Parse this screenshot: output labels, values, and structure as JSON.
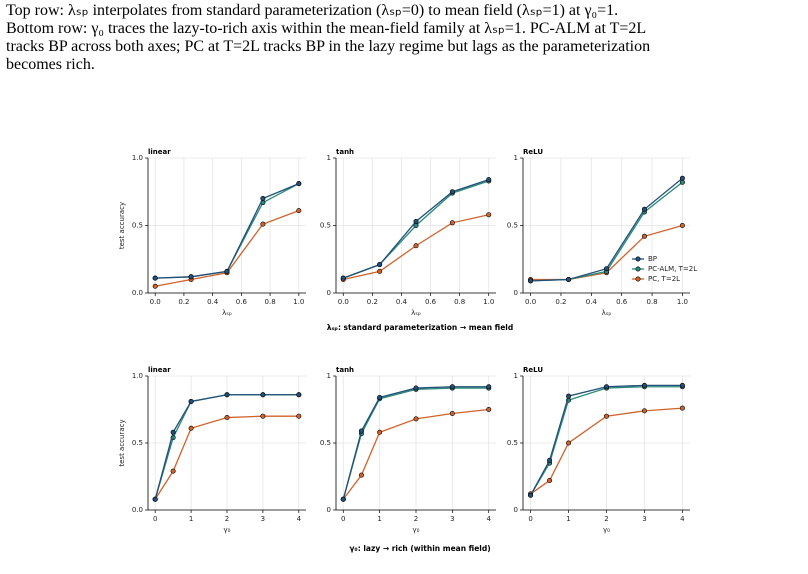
{
  "caption": {
    "lines": [
      "Top row: λₛₚ interpolates from standard parameterization (λₛₚ=0) to mean field (λₛₚ=1) at γ₀=1.",
      "Bottom row: γ₀ traces the lazy-to-rich axis within the mean-field family at λₛₚ=1. PC-ALM at T=2L",
      "tracks BP across both axes; PC at T=2L tracks BP in the lazy regime but lags as the parameterization",
      "becomes rich."
    ]
  },
  "row_labels": [
    "λₛₚ: standard parameterization → mean field",
    "γ₀: lazy → rich (within mean field)"
  ],
  "chart_data": [
    {
      "type": "line",
      "title": "linear",
      "x_label": "λₛₚ",
      "y_label": "test accuracy",
      "x": [
        0,
        0.25,
        0.5,
        0.75,
        1.0
      ],
      "series": [
        {
          "color": "#23507a",
          "values": [
            0.11,
            0.12,
            0.16,
            0.7,
            0.81
          ]
        },
        {
          "color": "#2a8a78",
          "values": [
            0.11,
            0.12,
            0.16,
            0.67,
            0.81
          ]
        },
        {
          "color": "#d0622c",
          "values": [
            0.05,
            0.1,
            0.15,
            0.51,
            0.61
          ]
        }
      ],
      "xlim": [
        -0.05,
        1.05
      ],
      "ylim": [
        0,
        1
      ],
      "xticks": [
        {
          "value": 0,
          "label": "0.0"
        },
        0.2,
        0.4,
        0.6,
        0.8,
        {
          "value": 1,
          "label": "1.0"
        }
      ],
      "yticks": [
        {
          "value": 0,
          "label": "0.0"
        },
        0.5,
        {
          "value": 1,
          "label": "1.0"
        }
      ],
      "grid": true
    },
    {
      "type": "line",
      "title": "tanh",
      "x_label": "λₛₚ",
      "x": [
        0,
        0.25,
        0.5,
        0.75,
        1.0
      ],
      "series": [
        {
          "color": "#23507a",
          "values": [
            0.11,
            0.21,
            0.53,
            0.75,
            0.84
          ]
        },
        {
          "color": "#2a8a78",
          "values": [
            0.11,
            0.21,
            0.5,
            0.74,
            0.83
          ]
        },
        {
          "color": "#d0622c",
          "values": [
            0.1,
            0.16,
            0.35,
            0.52,
            0.58
          ]
        }
      ],
      "xlim": [
        -0.05,
        1.05
      ],
      "ylim": [
        0,
        1
      ],
      "xticks": [
        {
          "value": 0,
          "label": "0.0"
        },
        0.2,
        0.4,
        0.6,
        0.8,
        {
          "value": 1,
          "label": "1.0"
        }
      ],
      "yticks": [
        0,
        0.5,
        1
      ],
      "grid": true
    },
    {
      "type": "line",
      "title": "ReLU",
      "x_label": "λₛₚ",
      "legend": "lower right",
      "x": [
        0,
        0.25,
        0.5,
        0.75,
        1.0
      ],
      "series": [
        {
          "name": "BP",
          "color": "#23507a",
          "values": [
            0.09,
            0.1,
            0.18,
            0.62,
            0.85
          ]
        },
        {
          "name": "PC-ALM, T=2L",
          "color": "#2a8a78",
          "values": [
            0.09,
            0.1,
            0.16,
            0.6,
            0.82
          ]
        },
        {
          "name": "PC, T=2L",
          "color": "#d0622c",
          "values": [
            0.1,
            0.1,
            0.15,
            0.42,
            0.5
          ]
        }
      ],
      "xlim": [
        -0.05,
        1.05
      ],
      "ylim": [
        0,
        1
      ],
      "xticks": [
        {
          "value": 0,
          "label": "0.0"
        },
        0.2,
        0.4,
        0.6,
        0.8,
        {
          "value": 1,
          "label": "1.0"
        }
      ],
      "yticks": [
        0,
        0.5,
        1
      ],
      "grid": true
    },
    {
      "type": "line",
      "title": "linear",
      "x_label": "γ₀",
      "y_label": "test accuracy",
      "x": [
        0,
        0.5,
        1,
        2,
        3,
        4
      ],
      "series": [
        {
          "color": "#23507a",
          "values": [
            0.08,
            0.58,
            0.81,
            0.86,
            0.86,
            0.86
          ]
        },
        {
          "color": "#2a8a78",
          "values": [
            0.08,
            0.54,
            0.81,
            0.86,
            0.86,
            0.86
          ]
        },
        {
          "color": "#d0622c",
          "values": [
            0.08,
            0.29,
            0.61,
            0.69,
            0.7,
            0.7
          ]
        }
      ],
      "xlim": [
        -0.2,
        4.2
      ],
      "ylim": [
        0,
        1
      ],
      "xticks": [
        0,
        1,
        2,
        3,
        4
      ],
      "yticks": [
        {
          "value": 0,
          "label": "0.0"
        },
        0.5,
        {
          "value": 1,
          "label": "1.0"
        }
      ],
      "grid": true
    },
    {
      "type": "line",
      "title": "tanh",
      "x_label": "γ₀",
      "x": [
        0,
        0.5,
        1,
        2,
        3,
        4
      ],
      "series": [
        {
          "color": "#23507a",
          "values": [
            0.08,
            0.59,
            0.84,
            0.91,
            0.92,
            0.92
          ]
        },
        {
          "color": "#2a8a78",
          "values": [
            0.08,
            0.57,
            0.83,
            0.9,
            0.91,
            0.91
          ]
        },
        {
          "color": "#d0622c",
          "values": [
            0.08,
            0.26,
            0.58,
            0.68,
            0.72,
            0.75
          ]
        }
      ],
      "xlim": [
        -0.2,
        4.2
      ],
      "ylim": [
        0,
        1
      ],
      "xticks": [
        0,
        1,
        2,
        3,
        4
      ],
      "yticks": [
        0,
        0.5,
        1
      ],
      "grid": true
    },
    {
      "type": "line",
      "title": "ReLU",
      "x_label": "γ₀",
      "x": [
        0,
        0.5,
        1,
        2,
        3,
        4
      ],
      "series": [
        {
          "color": "#23507a",
          "values": [
            0.11,
            0.37,
            0.85,
            0.92,
            0.93,
            0.93
          ]
        },
        {
          "color": "#2a8a78",
          "values": [
            0.11,
            0.35,
            0.82,
            0.91,
            0.92,
            0.92
          ]
        },
        {
          "color": "#d0622c",
          "values": [
            0.12,
            0.22,
            0.5,
            0.7,
            0.74,
            0.76
          ]
        }
      ],
      "xlim": [
        -0.2,
        4.2
      ],
      "ylim": [
        0,
        1
      ],
      "xticks": [
        0,
        1,
        2,
        3,
        4
      ],
      "yticks": [
        0,
        0.5,
        1
      ],
      "grid": true
    }
  ]
}
